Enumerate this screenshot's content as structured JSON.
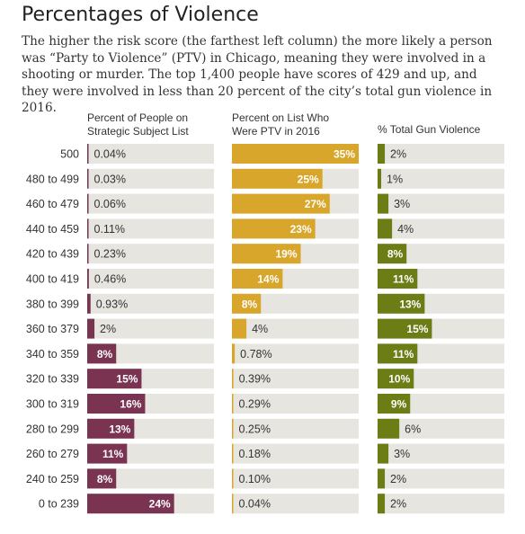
{
  "title": "Percentages of Violence",
  "description": "The higher the risk score (the farthest left column) the more likely a person was “Party to Violence” (PTV) in Chicago, meaning they were involved in a shooting or murder.  The top 1,400 people have scores of 429 and up, and they were involved in less than  20 percent of the city’s total gun violence in 2016.",
  "colors": {
    "track": "#e6e5e0",
    "people": "#7a3451",
    "ptv": "#d9a62c",
    "gun": "#6c7d16",
    "label_inside": "#ffffff",
    "label_outside": "#333333"
  },
  "chart_data": {
    "type": "bar",
    "categories": [
      "500",
      "480 to 499",
      "460 to 479",
      "440 to 459",
      "420 to 439",
      "400 to 419",
      "380 to 399",
      "360 to 379",
      "340 to 359",
      "320 to 339",
      "300 to 319",
      "280 to 299",
      "260 to 279",
      "240 to 259",
      "0 to 239"
    ],
    "series": [
      {
        "name": "Percent of People on Strategic Subject List",
        "values": [
          0.04,
          0.03,
          0.06,
          0.11,
          0.23,
          0.46,
          0.93,
          2,
          8,
          15,
          16,
          13,
          11,
          8,
          24
        ],
        "labels": [
          "0.04%",
          "0.03%",
          "0.06%",
          "0.11%",
          "0.23%",
          "0.46%",
          "0.93%",
          "2%",
          "8%",
          "15%",
          "16%",
          "13%",
          "11%",
          "8%",
          "24%"
        ],
        "max": 35
      },
      {
        "name": "Percent on List Who Were PTV in 2016",
        "values": [
          35,
          25,
          27,
          23,
          19,
          14,
          8,
          4,
          0.78,
          0.39,
          0.29,
          0.25,
          0.18,
          0.1,
          0.04
        ],
        "labels": [
          "35%",
          "25%",
          "27%",
          "23%",
          "19%",
          "14%",
          "8%",
          "4%",
          "0.78%",
          "0.39%",
          "0.29%",
          "0.25%",
          "0.18%",
          "0.10%",
          "0.04%"
        ],
        "max": 35
      },
      {
        "name": "% Total Gun Violence",
        "values": [
          2,
          1,
          3,
          4,
          8,
          11,
          13,
          15,
          11,
          10,
          9,
          6,
          3,
          2,
          2
        ],
        "labels": [
          "2%",
          "1%",
          "3%",
          "4%",
          "8%",
          "11%",
          "13%",
          "15%",
          "11%",
          "10%",
          "9%",
          "6%",
          "3%",
          "2%",
          "2%"
        ],
        "max": 35
      }
    ],
    "column_headers": [
      [
        "Percent of People on",
        "Strategic Subject List"
      ],
      [
        "Percent on List Who",
        "Were PTV in 2016"
      ],
      [
        "% Total Gun Violence"
      ]
    ]
  }
}
